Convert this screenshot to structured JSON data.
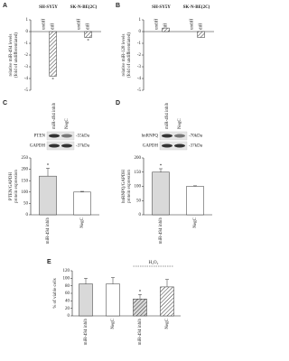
{
  "chart_data": [
    {
      "type": "bar",
      "panel": "A",
      "ylabel": [
        "relative miR-494 levels",
        "(fold of undifferentiated)"
      ],
      "categories": [
        "SH-SY5Y",
        "SK-N-BE(2C)"
      ],
      "series": [
        {
          "name": "undiff",
          "color": "#ffffff",
          "hatch": false,
          "values": [
            0,
            0
          ],
          "stars": [
            null,
            null
          ]
        },
        {
          "name": "diff",
          "color": "#ffffff",
          "hatch": true,
          "values": [
            -3.8,
            -0.5
          ],
          "stars": [
            "*",
            "*"
          ]
        }
      ],
      "ylim": [
        -5,
        1
      ],
      "yticks": [
        1,
        0,
        -1,
        -2,
        -3,
        -4,
        -5
      ]
    },
    {
      "type": "bar",
      "panel": "B",
      "ylabel": [
        "relative miR-128 levels",
        "(fold of undifferentiated)"
      ],
      "categories": [
        "SH-SY5Y",
        "SK-N-BE(2C)"
      ],
      "series": [
        {
          "name": "undiff",
          "color": "#ffffff",
          "hatch": false,
          "values": [
            0,
            0
          ],
          "stars": [
            null,
            null
          ]
        },
        {
          "name": "diff",
          "color": "#ffffff",
          "hatch": true,
          "values": [
            0.3,
            -0.5
          ],
          "stars": [
            null,
            null
          ]
        }
      ],
      "ylim": [
        -5,
        1
      ],
      "yticks": [
        1,
        0,
        -1,
        -2,
        -3,
        -4,
        -5
      ]
    },
    {
      "type": "bar",
      "panel": "C",
      "ylabel": [
        "PTEN/GAPDH",
        "protein expression"
      ],
      "categories": [
        "miR-494 inhib",
        "NegC"
      ],
      "values": [
        170,
        100
      ],
      "errors": [
        35,
        3
      ],
      "colors": [
        "#d9d9d9",
        "#ffffff"
      ],
      "stars": [
        "*",
        null
      ],
      "blot": [
        {
          "name": "PTEN",
          "size": "-55kDa"
        },
        {
          "name": "GAPDH",
          "size": "-37kDa"
        }
      ],
      "ylim": [
        0,
        250
      ],
      "yticks": [
        0,
        50,
        100,
        150,
        200,
        250
      ]
    },
    {
      "type": "bar",
      "panel": "D",
      "ylabel": [
        "hnRNPQ/GAPDH",
        "protein expression"
      ],
      "categories": [
        "miR-494 inhib",
        "NegC"
      ],
      "values": [
        150,
        100
      ],
      "errors": [
        12,
        2
      ],
      "colors": [
        "#d9d9d9",
        "#ffffff"
      ],
      "stars": [
        "*",
        null
      ],
      "blot": [
        {
          "name": "hnRNPQ",
          "size": "-70kDa"
        },
        {
          "name": "GAPDH",
          "size": "-37kDa"
        }
      ],
      "ylim": [
        0,
        200
      ],
      "yticks": [
        0,
        50,
        100,
        150,
        200
      ]
    },
    {
      "type": "bar",
      "panel": "E",
      "ylabel": [
        "% of viable cells"
      ],
      "categories": [
        "miR-494 inhib",
        "NegC",
        "miR-494 inhib",
        "NegC"
      ],
      "values": [
        85,
        85,
        45,
        77
      ],
      "errors": [
        15,
        17,
        12,
        20
      ],
      "colors": [
        "#d9d9d9",
        "#ffffff",
        "#d9d9d9",
        "#ffffff"
      ],
      "hatch": [
        false,
        false,
        true,
        true
      ],
      "stars": [
        null,
        null,
        "*",
        null
      ],
      "annotation": "H₂O₂",
      "ylim": [
        0,
        120
      ],
      "yticks": [
        0,
        20,
        40,
        60,
        80,
        100,
        120
      ]
    }
  ]
}
